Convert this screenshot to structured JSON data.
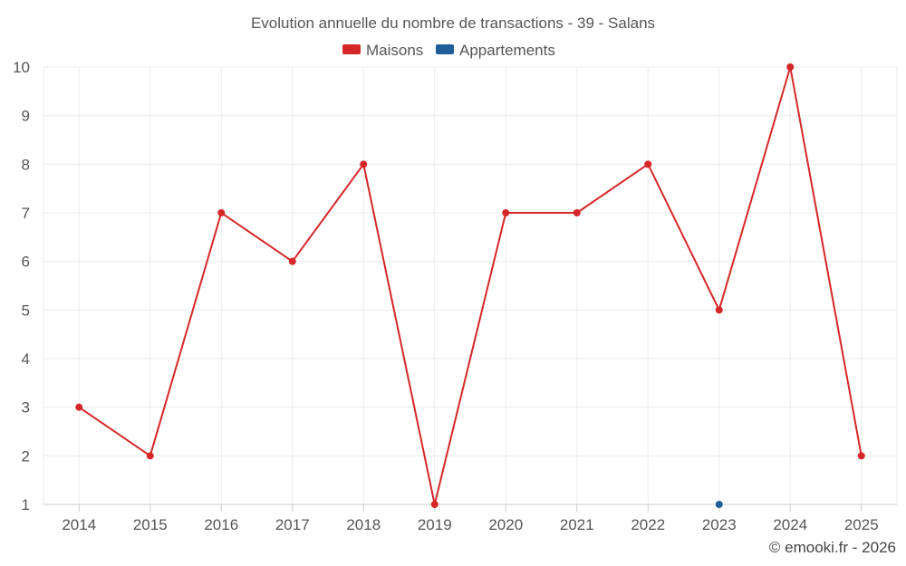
{
  "chart_data": {
    "type": "line",
    "title": "Evolution annuelle du nombre de transactions - 39 - Salans",
    "categories": [
      "2014",
      "2015",
      "2016",
      "2017",
      "2018",
      "2019",
      "2020",
      "2021",
      "2022",
      "2023",
      "2024",
      "2025"
    ],
    "ylim": [
      1,
      10
    ],
    "yticks": [
      1,
      2,
      3,
      4,
      5,
      6,
      7,
      8,
      9,
      10
    ],
    "grid": true,
    "legend_position": "top-center",
    "xlabel": "",
    "ylabel": "",
    "series": [
      {
        "name": "Maisons",
        "color": "#d62728",
        "values": [
          3,
          2,
          7,
          6,
          8,
          1,
          7,
          7,
          8,
          5,
          10,
          2
        ]
      },
      {
        "name": "Appartements",
        "color": "#1f5f99",
        "values": [
          null,
          null,
          null,
          null,
          null,
          null,
          null,
          null,
          null,
          1,
          null,
          null
        ]
      }
    ]
  },
  "credit": "© emooki.fr - 2026"
}
